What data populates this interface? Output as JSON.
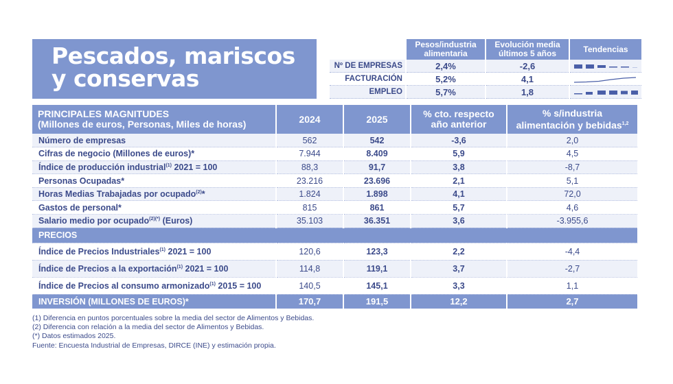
{
  "title": {
    "line1": "Pescados, mariscos",
    "line2": "y conservas"
  },
  "indicators": {
    "headers": [
      "Pesos/industria alimentaria",
      "Evolución media últimos 5 años",
      "Tendencias"
    ],
    "rows": [
      {
        "label": "Nº DE EMPRESAS",
        "peso": "2,4%",
        "evolucion": "-2,6",
        "trend_icon": "declining-bars-sparkline"
      },
      {
        "label": "FACTURACIÓN",
        "peso": "5,2%",
        "evolucion": "4,1",
        "trend_icon": "rising-line-sparkline"
      },
      {
        "label": "EMPLEO",
        "peso": "5,7%",
        "evolucion": "1,8",
        "trend_icon": "rising-bars-sparkline"
      }
    ]
  },
  "table": {
    "header": {
      "lead1": "PRINCIPALES MAGNITUDES",
      "lead2": "(Millones de euros, Personas, Miles de horas)",
      "y1": "2024",
      "y2": "2025",
      "c3a": "% cto. respecto",
      "c3b": "año anterior",
      "c4a": "% s/industria",
      "c4b": "alimentación y bebidas",
      "c4sup": "1,2"
    },
    "rows": [
      {
        "label": "Número de empresas",
        "sup": "",
        "suffix": "",
        "v2024": "562",
        "v2025": "542",
        "pct": "-3,6",
        "share": "2,0"
      },
      {
        "label": "Cifras de negocio (Millones de euros)*",
        "sup": "",
        "suffix": "",
        "v2024": "7.944",
        "v2025": "8.409",
        "pct": "5,9",
        "share": "4,5"
      },
      {
        "label": "Índice de producción industrial",
        "sup": "(1)",
        "suffix": " 2021 = 100",
        "v2024": "88,3",
        "v2025": "91,7",
        "pct": "3,8",
        "share": "-8,7"
      },
      {
        "label": "Personas Ocupadas*",
        "sup": "",
        "suffix": "",
        "v2024": "23.216",
        "v2025": "23.696",
        "pct": "2,1",
        "share": "5,1"
      },
      {
        "label": "Horas Medias Trabajadas por ocupado",
        "sup": "(2)",
        "suffix": "*",
        "v2024": "1.824",
        "v2025": "1.898",
        "pct": "4,1",
        "share": "72,0"
      },
      {
        "label": "Gastos de personal*",
        "sup": "",
        "suffix": "",
        "v2024": "815",
        "v2025": "861",
        "pct": "5,7",
        "share": "4,6"
      },
      {
        "label": "Salario medio por ocupado",
        "sup": "(2)(*)",
        "suffix": " (Euros)",
        "v2024": "35.103",
        "v2025": "36.351",
        "pct": "3,6",
        "share": "-3.955,6"
      }
    ],
    "section": "PRECIOS",
    "price_rows": [
      {
        "label": "Índice de Precios Industriales",
        "sup": "(1)",
        "suffix": " 2021 = 100",
        "v2024": "120,6",
        "v2025": "123,3",
        "pct": "2,2",
        "share": "-4,4"
      },
      {
        "label": "Índice de Precios a la exportación",
        "sup": "(1)",
        "suffix": " 2021 = 100",
        "v2024": "114,8",
        "v2025": "119,1",
        "pct": "3,7",
        "share": "-2,7"
      },
      {
        "label": "Índice de Precios al consumo armonizado",
        "sup": "(1)",
        "suffix": " 2015 = 100",
        "v2024": "140,5",
        "v2025": "145,1",
        "pct": "3,3",
        "share": "1,1"
      }
    ],
    "investment": {
      "label": "INVERSIÓN (MILLONES DE EUROS)*",
      "v2024": "170,7",
      "v2025": "191,5",
      "pct": "12,2",
      "share": "2,7"
    }
  },
  "notes": [
    "(1) Diferencia en puntos porcentuales sobre la media del sector de Alimentos y Bebidas.",
    "(2) Diferencia con relación a la media del sector de Alimentos y Bebidas.",
    "(*) Datos estimados 2025.",
    "Fuente: Encuesta Industrial de Empresas, DIRCE (INE) y estimación propia."
  ],
  "colors": {
    "accent": "#7f96cf",
    "text": "#3b4a8a",
    "zebra": "#eef1f9"
  }
}
